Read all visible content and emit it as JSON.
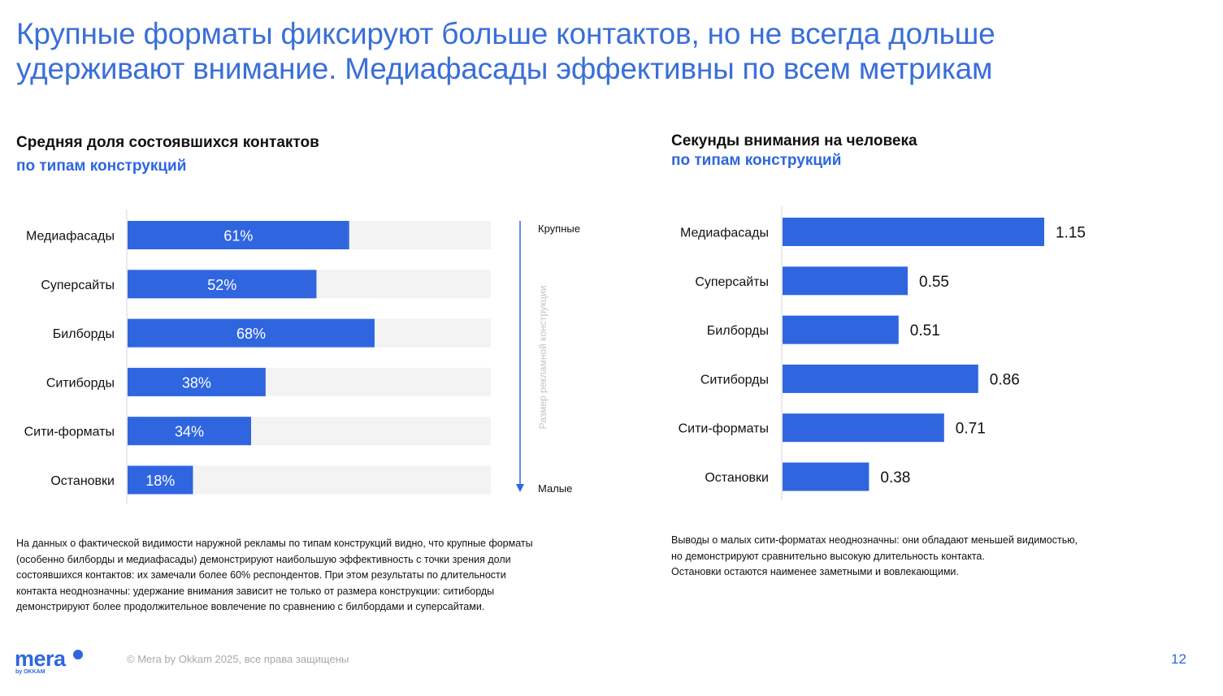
{
  "title_line1": "Крупные форматы фиксируют больше контактов, но не всегда дольше",
  "title_line2": "удерживают внимание. Медиафасады эффективны по всем метрикам",
  "colors": {
    "accent": "#2f66e0",
    "title": "#3a6fd8",
    "track": "#f3f3f3"
  },
  "chart_data": [
    {
      "type": "bar",
      "orientation": "horizontal",
      "title": "Средняя доля состоявшихся контактов",
      "subtitle": "по типам конструкций",
      "categories": [
        "Медиафасады",
        "Суперсайты",
        "Билборды",
        "Ситиборды",
        "Сити-форматы",
        "Остановки"
      ],
      "values": [
        61,
        52,
        68,
        38,
        34,
        18
      ],
      "value_labels": [
        "61%",
        "52%",
        "68%",
        "38%",
        "34%",
        "18%"
      ],
      "xlim": [
        0,
        100
      ],
      "label_position": "inside",
      "background_track": true
    },
    {
      "type": "bar",
      "orientation": "horizontal",
      "title": "Секунды внимания на человека",
      "subtitle": "по типам конструкций",
      "categories": [
        "Медиафасады",
        "Суперсайты",
        "Билборды",
        "Ситиборды",
        "Сити-форматы",
        "Остановки"
      ],
      "values": [
        1.15,
        0.55,
        0.51,
        0.86,
        0.71,
        0.38
      ],
      "value_labels": [
        "1.15",
        "0.55",
        "0.51",
        "0.86",
        "0.71",
        "0.38"
      ],
      "xlim": [
        0,
        1.15
      ],
      "label_position": "outside"
    }
  ],
  "size_axis": {
    "top_label": "Крупные",
    "bottom_label": "Малые",
    "vertical_label": "Размер рекламной конструкции"
  },
  "notes": {
    "left": [
      "На данных о фактической видимости наружной рекламы по типам конструкций видно, что крупные форматы",
      "(особенно билборды и медиафасады) демонстрируют наибольшую эффективность с точки зрения доли",
      "состоявшихся контактов: их замечали более 60% респондентов. При этом результаты по длительности",
      "контакта неоднозначны: удержание внимания зависит не только от размера конструкции: ситиборды",
      "демонстрируют более продолжительное вовлечение по сравнению с билбордами и суперсайтами."
    ],
    "right": [
      "Выводы о малых сити-форматах неоднозначны: они обладают меньшей видимостью,",
      "но демонстрируют сравнительно высокую длительность контакта.",
      "Остановки остаются наименее заметными и вовлекающими."
    ]
  },
  "footer": {
    "logo": "mera",
    "logo_sub": "by OKKAM",
    "copyright": "© Mera by Okkam 2025, все права защищены",
    "page_number": "12"
  }
}
